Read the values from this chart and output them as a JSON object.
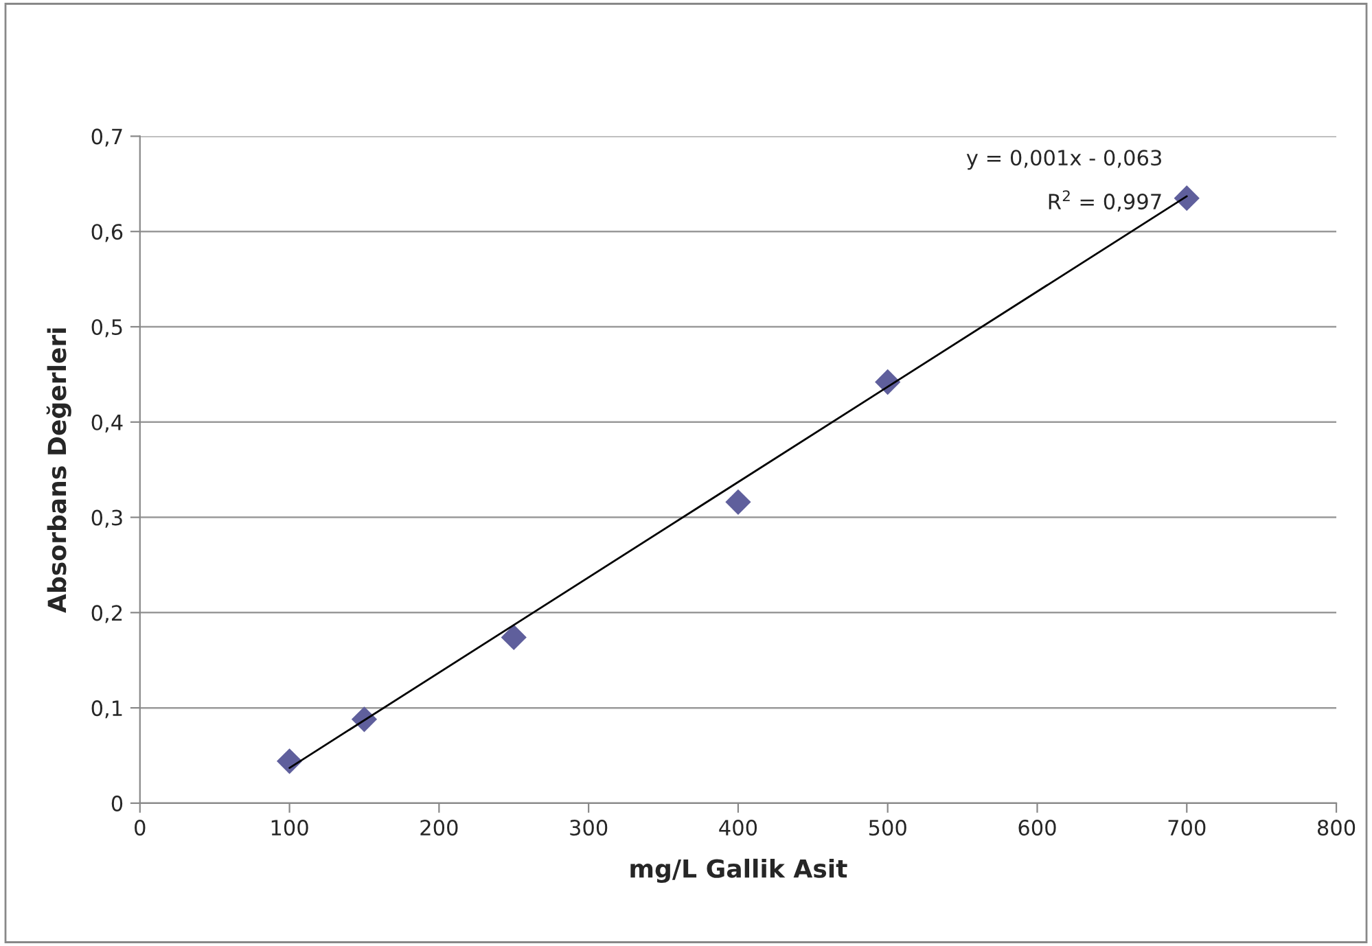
{
  "chart_data": {
    "type": "scatter",
    "xlabel": "mg/L Gallik Asit",
    "ylabel": "Absorbans Değerleri",
    "series": [
      {
        "color": "#5f5f9c",
        "marker": "diamond",
        "x": [
          100,
          150,
          250,
          400,
          500,
          700
        ],
        "values": [
          0.044,
          0.088,
          0.174,
          0.316,
          0.442,
          0.635
        ]
      },
      {
        "type": "line",
        "color": "#000000",
        "marker": "none",
        "line_style": "solid",
        "x": [
          100,
          700
        ],
        "values": [
          0.037,
          0.637
        ]
      }
    ],
    "annotations": [
      "y = 0,001x - 0,063",
      "R$^{2}$ = 0,997"
    ],
    "xlim": [
      0,
      800
    ],
    "xticks": [
      0,
      100,
      200,
      300,
      400,
      500,
      600,
      700,
      800
    ],
    "ylim": [
      0,
      0.7
    ],
    "yticks": [
      {
        "value": 0,
        "label": "0"
      },
      {
        "value": 0.1,
        "label": "0,1"
      },
      {
        "value": 0.2,
        "label": "0,2"
      },
      {
        "value": 0.3,
        "label": "0,3"
      },
      {
        "value": 0.4,
        "label": "0,4"
      },
      {
        "value": 0.5,
        "label": "0,5"
      },
      {
        "value": 0.6,
        "label": "0,6"
      },
      {
        "value": 0.7,
        "label": "0,7"
      }
    ],
    "grid": "y",
    "legend": false
  }
}
